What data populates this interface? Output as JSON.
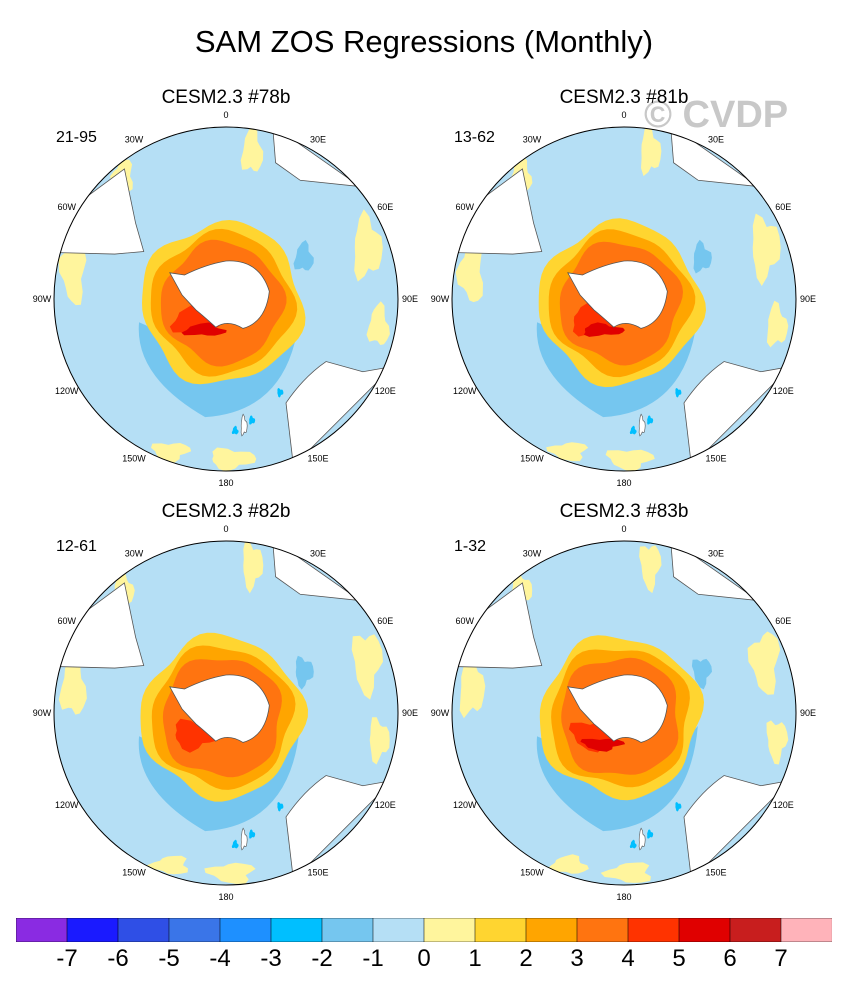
{
  "title": "SAM ZOS Regressions (Monthly)",
  "watermark": "© CVDP",
  "panels": [
    {
      "title": "CESM2.3 #78b",
      "range": "21-95"
    },
    {
      "title": "CESM2.3 #81b",
      "range": "13-62"
    },
    {
      "title": "CESM2.3 #82b",
      "range": "12-61"
    },
    {
      "title": "CESM2.3 #83b",
      "range": "1-32"
    }
  ],
  "lon_labels": [
    "0",
    "30E",
    "60E",
    "90E",
    "120E",
    "150E",
    "180",
    "150W",
    "120W",
    "90W",
    "60W",
    "30W"
  ],
  "colorbar": {
    "colors": [
      "#8a2be2",
      "#1a1aff",
      "#2f4fe6",
      "#3a75e8",
      "#1e90ff",
      "#00bfff",
      "#75c6ef",
      "#b5dff5",
      "#fff59d",
      "#ffd530",
      "#ffa500",
      "#ff7410",
      "#ff3300",
      "#e00000",
      "#c81e1e",
      "#ffb3ba"
    ],
    "tick_labels": [
      "-7",
      "-6",
      "-5",
      "-4",
      "-3",
      "-2",
      "-1",
      "0",
      "1",
      "2",
      "3",
      "4",
      "5",
      "6",
      "7"
    ]
  },
  "chart_data": {
    "type": "heatmap",
    "projection": "south-polar-stereographic",
    "title": "SAM ZOS Regressions (Monthly)",
    "variable": "ZOS regression onto SAM",
    "levels": [
      -7,
      -6,
      -5,
      -4,
      -3,
      -2,
      -1,
      0,
      1,
      2,
      3,
      4,
      5,
      6,
      7
    ],
    "panels": [
      {
        "model": "CESM2.3 #78b",
        "years": "21-95",
        "ring_max": 5,
        "pacific_min": -2
      },
      {
        "model": "CESM2.3 #81b",
        "years": "13-62",
        "ring_max": 5,
        "pacific_min": -2
      },
      {
        "model": "CESM2.3 #82b",
        "years": "12-61",
        "ring_max": 4,
        "pacific_min": -2
      },
      {
        "model": "CESM2.3 #83b",
        "years": "1-32",
        "ring_max": 5,
        "pacific_min": -2
      }
    ]
  }
}
